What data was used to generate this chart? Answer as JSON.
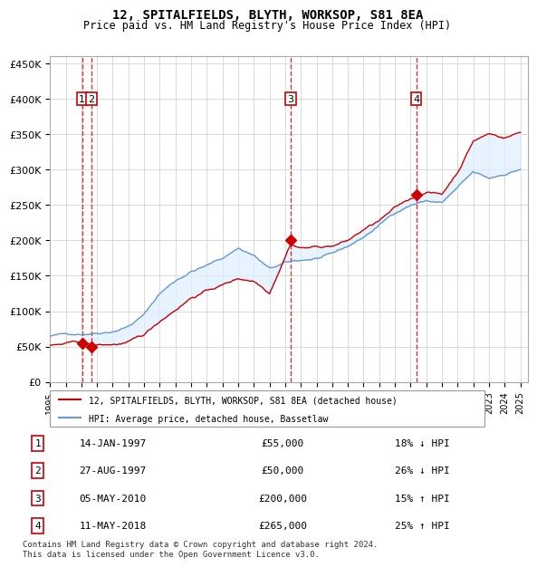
{
  "title1": "12, SPITALFIELDS, BLYTH, WORKSOP, S81 8EA",
  "title2": "Price paid vs. HM Land Registry's House Price Index (HPI)",
  "legend1": "12, SPITALFIELDS, BLYTH, WORKSOP, S81 8EA (detached house)",
  "legend2": "HPI: Average price, detached house, Bassetlaw",
  "footnote": "Contains HM Land Registry data © Crown copyright and database right 2024.\nThis data is licensed under the Open Government Licence v3.0.",
  "sale_color": "#cc0000",
  "hpi_color": "#6699cc",
  "background_color": "#ddeeff",
  "ylim": [
    0,
    460000
  ],
  "yticks": [
    0,
    50000,
    100000,
    150000,
    200000,
    250000,
    300000,
    350000,
    400000,
    450000
  ],
  "xlim_start": 1995.0,
  "xlim_end": 2025.5,
  "transactions": [
    {
      "num": 1,
      "date_label": "14-JAN-1997",
      "date_x": 1997.04,
      "price": 55000,
      "pct": "18%",
      "dir": "↓"
    },
    {
      "num": 2,
      "date_label": "27-AUG-1997",
      "date_x": 1997.65,
      "price": 50000,
      "pct": "26%",
      "dir": "↓"
    },
    {
      "num": 3,
      "date_label": "05-MAY-2010",
      "date_x": 2010.34,
      "price": 200000,
      "pct": "15%",
      "dir": "↑"
    },
    {
      "num": 4,
      "date_label": "11-MAY-2018",
      "date_x": 2018.36,
      "price": 265000,
      "pct": "25%",
      "dir": "↑"
    }
  ],
  "table_rows": [
    {
      "num": 1,
      "date": "14-JAN-1997",
      "price": "£55,000",
      "rel": "18% ↓ HPI"
    },
    {
      "num": 2,
      "date": "27-AUG-1997",
      "price": "£50,000",
      "rel": "26% ↓ HPI"
    },
    {
      "num": 3,
      "date": "05-MAY-2010",
      "price": "£200,000",
      "rel": "15% ↑ HPI"
    },
    {
      "num": 4,
      "date": "11-MAY-2018",
      "price": "£265,000",
      "rel": "25% ↑ HPI"
    }
  ]
}
